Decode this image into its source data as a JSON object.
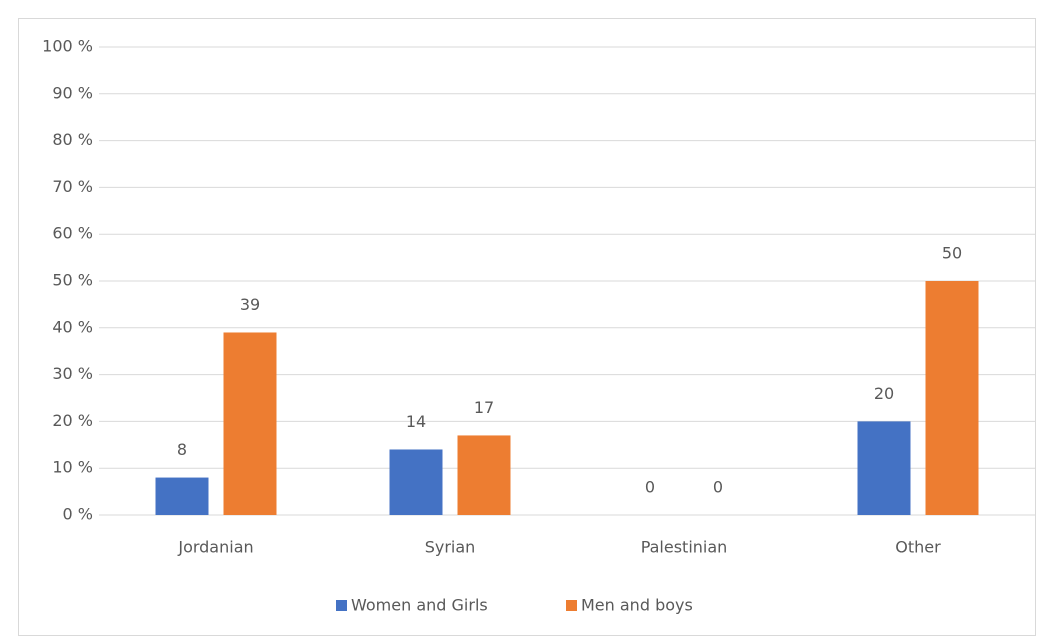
{
  "chart_data": {
    "type": "bar",
    "categories": [
      "Jordanian",
      "Syrian",
      "Palestinian",
      "Other"
    ],
    "series": [
      {
        "name": "Women and Girls",
        "color": "#4472c4",
        "values": [
          8,
          14,
          0,
          20
        ]
      },
      {
        "name": "Men and boys",
        "color": "#ed7d31",
        "values": [
          39,
          17,
          0,
          50
        ]
      }
    ],
    "ylim": [
      0,
      100
    ],
    "yticks": [
      {
        "value": 0,
        "label": "0 %"
      },
      {
        "value": 10,
        "label": "10 %"
      },
      {
        "value": 20,
        "label": "20 %"
      },
      {
        "value": 30,
        "label": "30 %"
      },
      {
        "value": 40,
        "label": "40 %"
      },
      {
        "value": 50,
        "label": "50 %"
      },
      {
        "value": 60,
        "label": "60 %"
      },
      {
        "value": 70,
        "label": "70 %"
      },
      {
        "value": 80,
        "label": "80 %"
      },
      {
        "value": 90,
        "label": "90 %"
      },
      {
        "value": 100,
        "label": "100 %"
      }
    ],
    "grid": true,
    "legend": "bottom"
  }
}
